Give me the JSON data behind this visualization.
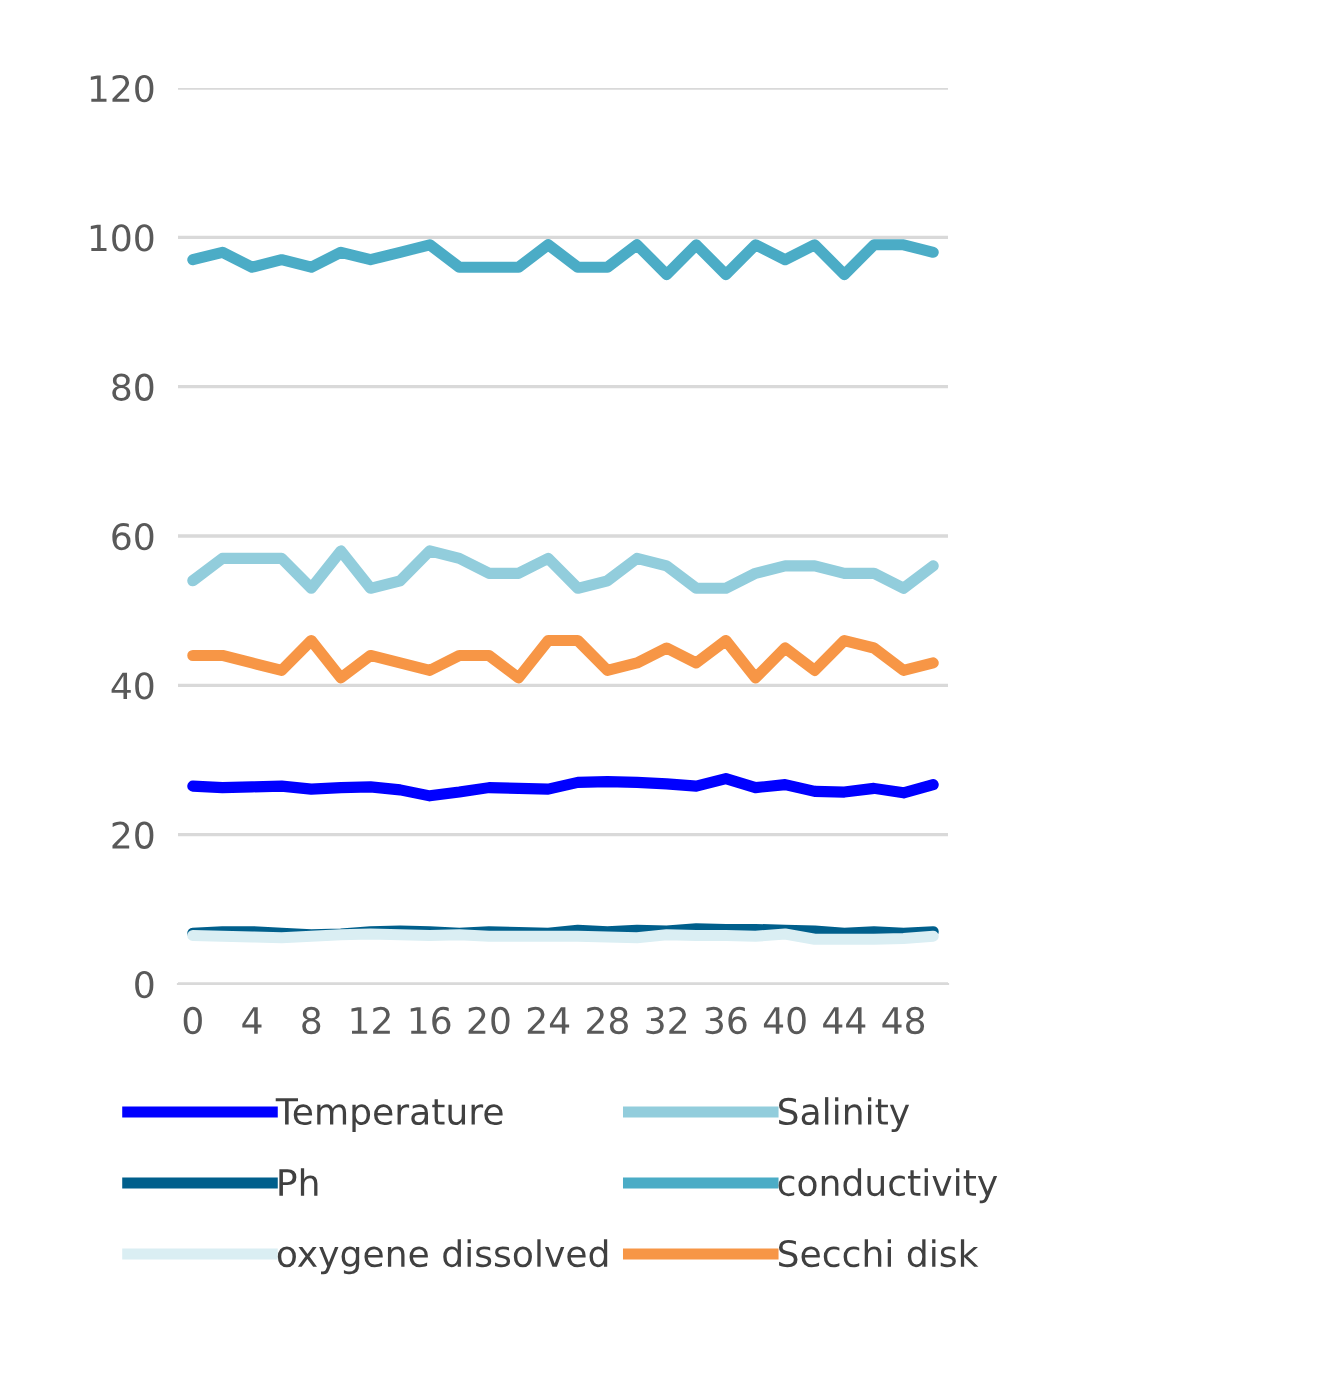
{
  "chart_data": {
    "type": "line",
    "x": [
      0,
      2,
      4,
      6,
      8,
      10,
      12,
      14,
      16,
      18,
      20,
      22,
      24,
      26,
      28,
      30,
      32,
      34,
      36,
      38,
      40,
      42,
      44,
      46,
      48,
      50
    ],
    "series": [
      {
        "name": "Temperature",
        "color": "#0000ff",
        "values": [
          26.5,
          26.3,
          26.4,
          26.5,
          26.1,
          26.3,
          26.4,
          26.0,
          25.2,
          25.7,
          26.3,
          26.2,
          26.1,
          27.0,
          27.1,
          27.0,
          26.8,
          26.5,
          27.5,
          26.3,
          26.7,
          25.8,
          25.7,
          26.2,
          25.6,
          26.7
        ]
      },
      {
        "name": "Ph",
        "color": "#005f8c",
        "values": [
          6.8,
          7.0,
          7.0,
          6.8,
          6.6,
          6.7,
          7.0,
          7.1,
          7.0,
          6.8,
          7.0,
          6.9,
          6.8,
          7.2,
          7.0,
          7.2,
          7.1,
          7.4,
          7.3,
          7.3,
          7.2,
          7.1,
          6.8,
          7.0,
          6.8,
          7.0
        ]
      },
      {
        "name": "oxygene dissolved",
        "color": "#daeef3",
        "values": [
          6.5,
          6.4,
          6.3,
          6.2,
          6.4,
          6.6,
          6.7,
          6.6,
          6.5,
          6.6,
          6.4,
          6.4,
          6.4,
          6.4,
          6.3,
          6.2,
          6.6,
          6.5,
          6.5,
          6.4,
          6.7,
          6.0,
          6.0,
          6.0,
          6.1,
          6.4
        ]
      },
      {
        "name": "Salinity",
        "color": "#92cddc",
        "values": [
          54,
          57,
          57,
          57,
          53,
          58,
          53,
          54,
          58,
          57,
          55,
          55,
          57,
          53,
          54,
          57,
          56,
          53,
          53,
          55,
          56,
          56,
          55,
          55,
          53,
          56
        ]
      },
      {
        "name": "conductivity",
        "color": "#4bacc6",
        "values": [
          97,
          98,
          96,
          97,
          96,
          98,
          97,
          98,
          99,
          96,
          96,
          96,
          99,
          96,
          96,
          99,
          95,
          99,
          95,
          99,
          97,
          99,
          95,
          99,
          99,
          98
        ]
      },
      {
        "name": "Secchi disk",
        "color": "#f79646",
        "values": [
          44,
          44,
          43,
          42,
          46,
          41,
          44,
          43,
          42,
          44,
          44,
          41,
          46,
          46,
          42,
          43,
          45,
          43,
          46,
          41,
          45,
          42,
          46,
          45,
          42,
          43
        ]
      }
    ],
    "xlim": [
      -1,
      51
    ],
    "xticks": [
      0,
      4,
      8,
      12,
      16,
      20,
      24,
      28,
      32,
      36,
      40,
      44,
      48
    ],
    "ylim": [
      0,
      120
    ],
    "yticks": [
      0,
      20,
      40,
      60,
      80,
      100,
      120
    ],
    "grid": "y",
    "legend": "bottom",
    "marker": "none",
    "line_style": "solid"
  }
}
